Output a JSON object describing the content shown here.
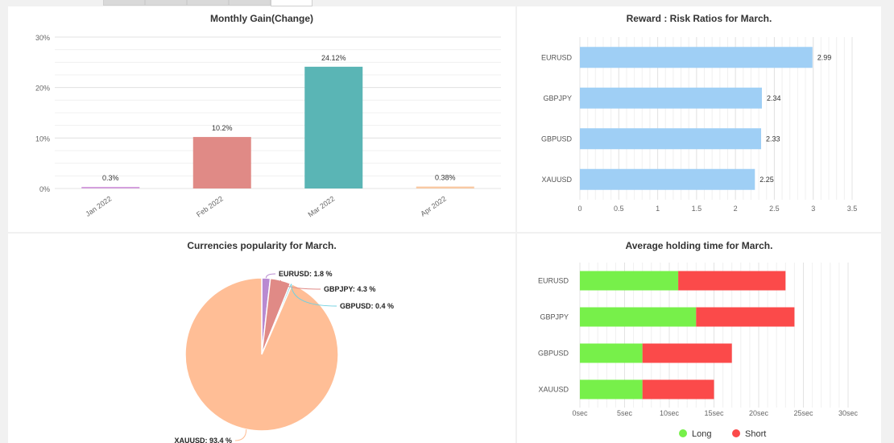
{
  "tabs": [
    {
      "label": ""
    },
    {
      "label": ""
    },
    {
      "label": ""
    },
    {
      "label": ""
    },
    {
      "label": ""
    }
  ],
  "chart_data": [
    {
      "id": "monthly-gain",
      "type": "bar",
      "title": "Monthly Gain(Change)",
      "categories": [
        "Jan 2022",
        "Feb 2022",
        "Mar 2022",
        "Apr 2022"
      ],
      "values": [
        0.3,
        10.2,
        24.12,
        0.38
      ],
      "data_labels": [
        "0.3%",
        "10.2%",
        "24.12%",
        "0.38%"
      ],
      "colors": [
        "#d4a0dd",
        "#e08a86",
        "#5ab5b5",
        "#f9c9a3"
      ],
      "ylim": [
        0,
        30
      ],
      "yticks": [
        0,
        10,
        20,
        30
      ],
      "ytick_labels": [
        "0%",
        "10%",
        "20%",
        "30%"
      ],
      "xlabel": "",
      "ylabel": "",
      "grid": true
    },
    {
      "id": "reward-risk",
      "type": "bar",
      "orientation": "horizontal",
      "title": "Reward : Risk Ratios for March.",
      "categories": [
        "EURUSD",
        "GBPJPY",
        "GBPUSD",
        "XAUUSD"
      ],
      "values": [
        2.99,
        2.34,
        2.33,
        2.25
      ],
      "data_labels": [
        "2.99",
        "2.34",
        "2.33",
        "2.25"
      ],
      "color": "#9fcff5",
      "xlim": [
        0,
        3.5
      ],
      "xticks": [
        0,
        0.5,
        1,
        1.5,
        2,
        2.5,
        3,
        3.5
      ],
      "xtick_labels": [
        "0",
        "0.5",
        "1",
        "1.5",
        "2",
        "2.5",
        "3",
        "3.5"
      ],
      "grid": true
    },
    {
      "id": "currency-popularity",
      "type": "pie",
      "title": "Currencies popularity for March.",
      "labels": [
        "EURUSD",
        "GBPJPY",
        "GBPUSD",
        "XAUUSD"
      ],
      "values": [
        1.8,
        4.3,
        0.4,
        93.4
      ],
      "data_labels": [
        "EURUSD: 1.8 %",
        "GBPJPY: 4.3 %",
        "GBPUSD: 0.4 %",
        "XAUUSD: 93.4 %"
      ],
      "colors": [
        "#b98ad1",
        "#e08a86",
        "#6fd0e0",
        "#ffbe96"
      ]
    },
    {
      "id": "holding-time",
      "type": "bar",
      "orientation": "horizontal",
      "stacked": true,
      "title": "Average holding time for March.",
      "categories": [
        "EURUSD",
        "GBPJPY",
        "GBPUSD",
        "XAUUSD"
      ],
      "series": [
        {
          "name": "Long",
          "color": "#77f04a",
          "values": [
            11,
            13,
            7,
            7
          ]
        },
        {
          "name": "Short",
          "color": "#fb4a4a",
          "values": [
            12,
            11,
            10,
            8
          ]
        }
      ],
      "xlim": [
        0,
        30
      ],
      "xticks": [
        0,
        5,
        10,
        15,
        20,
        25,
        30
      ],
      "xtick_labels": [
        "0sec",
        "5sec",
        "10sec",
        "15sec",
        "20sec",
        "25sec",
        "30sec"
      ],
      "legend": "bottom-center",
      "grid": true
    }
  ]
}
